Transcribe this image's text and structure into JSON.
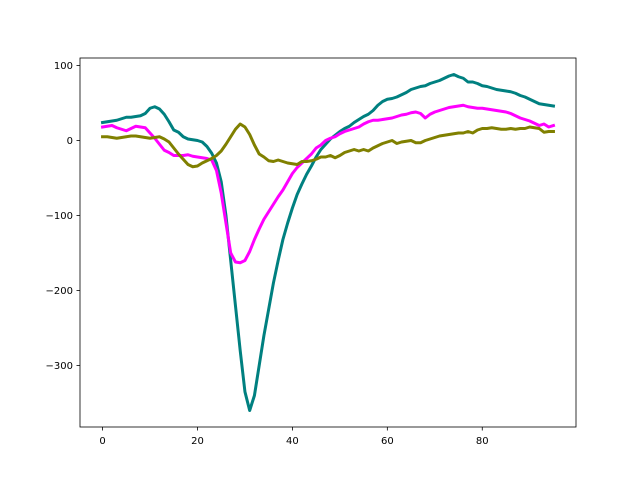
{
  "chart_data": {
    "type": "line",
    "x": [
      0,
      1,
      2,
      3,
      4,
      5,
      6,
      7,
      8,
      9,
      10,
      11,
      12,
      13,
      14,
      15,
      16,
      17,
      18,
      19,
      20,
      21,
      22,
      23,
      24,
      25,
      26,
      27,
      28,
      29,
      30,
      31,
      32,
      33,
      34,
      35,
      36,
      37,
      38,
      39,
      40,
      41,
      42,
      43,
      44,
      45,
      46,
      47,
      48,
      49,
      50,
      51,
      52,
      53,
      54,
      55,
      56,
      57,
      58,
      59,
      60,
      61,
      62,
      63,
      64,
      65,
      66,
      67,
      68,
      69,
      70,
      71,
      72,
      73,
      74,
      75,
      76,
      77,
      78,
      79,
      80,
      81,
      82,
      83,
      84,
      85,
      86,
      87,
      88,
      89,
      90,
      91,
      92,
      93,
      94,
      95
    ],
    "series": [
      {
        "color": "#008080",
        "values": [
          24,
          25,
          26,
          27,
          29,
          31,
          31,
          32,
          33,
          36,
          43,
          45,
          42,
          35,
          25,
          14,
          11,
          5,
          2,
          1,
          0,
          -2,
          -8,
          -17,
          -30,
          -55,
          -100,
          -160,
          -220,
          -280,
          -335,
          -360,
          -340,
          -300,
          -260,
          -225,
          -190,
          -160,
          -132,
          -110,
          -90,
          -72,
          -58,
          -45,
          -34,
          -22,
          -12,
          -5,
          2,
          7,
          12,
          16,
          19,
          24,
          28,
          32,
          35,
          40,
          47,
          52,
          55,
          56,
          58,
          61,
          64,
          68,
          70,
          72,
          73,
          76,
          78,
          80,
          83,
          86,
          88,
          85,
          83,
          78,
          78,
          76,
          73,
          72,
          70,
          68,
          67,
          66,
          65,
          63,
          60,
          58,
          55,
          52,
          49,
          48,
          47,
          46
        ]
      },
      {
        "color": "#ff00ff",
        "values": [
          18,
          19,
          20,
          17,
          15,
          13,
          16,
          19,
          18,
          17,
          10,
          3,
          -5,
          -13,
          -16,
          -20,
          -20,
          -20,
          -19,
          -21,
          -22,
          -23,
          -24,
          -26,
          -40,
          -70,
          -110,
          -150,
          -162,
          -163,
          -160,
          -148,
          -132,
          -118,
          -105,
          -95,
          -85,
          -75,
          -66,
          -55,
          -44,
          -36,
          -30,
          -24,
          -18,
          -10,
          -6,
          0,
          3,
          5,
          9,
          12,
          14,
          16,
          18,
          22,
          25,
          27,
          27,
          28,
          29,
          30,
          32,
          34,
          35,
          37,
          38,
          36,
          30,
          35,
          38,
          40,
          42,
          44,
          45,
          46,
          47,
          45,
          44,
          43,
          43,
          42,
          41,
          40,
          39,
          38,
          36,
          33,
          30,
          28,
          26,
          23,
          20,
          22,
          18,
          20
        ]
      },
      {
        "color": "#808000",
        "values": [
          5,
          5,
          4,
          3,
          4,
          5,
          6,
          6,
          5,
          4,
          3,
          4,
          5,
          2,
          -2,
          -10,
          -18,
          -25,
          -32,
          -35,
          -34,
          -30,
          -27,
          -24,
          -20,
          -14,
          -5,
          5,
          15,
          22,
          18,
          8,
          -6,
          -18,
          -22,
          -27,
          -28,
          -26,
          -28,
          -30,
          -31,
          -32,
          -28,
          -28,
          -27,
          -25,
          -22,
          -22,
          -20,
          -23,
          -20,
          -16,
          -14,
          -12,
          -14,
          -12,
          -14,
          -10,
          -7,
          -4,
          -2,
          0,
          -4,
          -2,
          -1,
          0,
          -3,
          -3,
          0,
          2,
          4,
          6,
          7,
          8,
          9,
          10,
          10,
          12,
          10,
          14,
          16,
          16,
          17,
          16,
          15,
          15,
          16,
          15,
          16,
          16,
          18,
          17,
          16,
          11,
          12,
          12
        ]
      }
    ],
    "xlim": [
      -4.75,
      99.75
    ],
    "xticks": [
      0,
      20,
      40,
      60,
      80
    ],
    "ylim": [
      -382,
      110
    ],
    "yticks": [
      {
        "value": -300,
        "label": "−300"
      },
      {
        "value": -200,
        "label": "−200"
      },
      {
        "value": -100,
        "label": "−100"
      },
      0,
      100
    ],
    "line_width": 3
  }
}
